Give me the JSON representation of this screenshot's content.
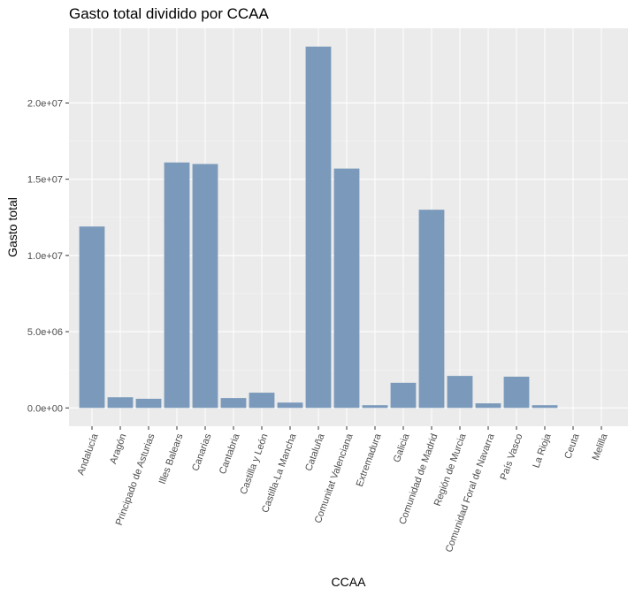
{
  "chart_data": {
    "type": "bar",
    "title": "Gasto total dividido por CCAA",
    "xlabel": "CCAA",
    "ylabel": "Gasto total",
    "categories": [
      "Andalucía",
      "Aragón",
      "Principado de Asturias",
      "Illes Balears",
      "Canarias",
      "Cantabria",
      "Castilla y León",
      "Castilla-La Mancha",
      "Cataluña",
      "Comunitat Valenciana",
      "Extremadura",
      "Galicia",
      "Comunidad de Madrid",
      "Región de Murcia",
      "Comunidad Foral de Navarra",
      "País Vasco",
      "La Rioja",
      "Ceuta",
      "Melilla"
    ],
    "values": [
      11900000,
      700000,
      600000,
      16100000,
      16000000,
      650000,
      1000000,
      350000,
      23700000,
      15700000,
      180000,
      1650000,
      13000000,
      2100000,
      300000,
      2050000,
      180000,
      0,
      0
    ],
    "yticks": [
      0,
      5000000,
      10000000,
      15000000,
      20000000
    ],
    "ytick_labels": [
      "0.0e+00",
      "5.0e+06",
      "1.0e+07",
      "1.5e+07",
      "2.0e+07"
    ],
    "ylim": [
      -1200000,
      24900000
    ],
    "grid": true,
    "colors": {
      "bar": "#7b9abb",
      "panel": "#ebebeb",
      "grid_major": "#ffffff",
      "grid_minor": "#f5f5f5"
    }
  }
}
